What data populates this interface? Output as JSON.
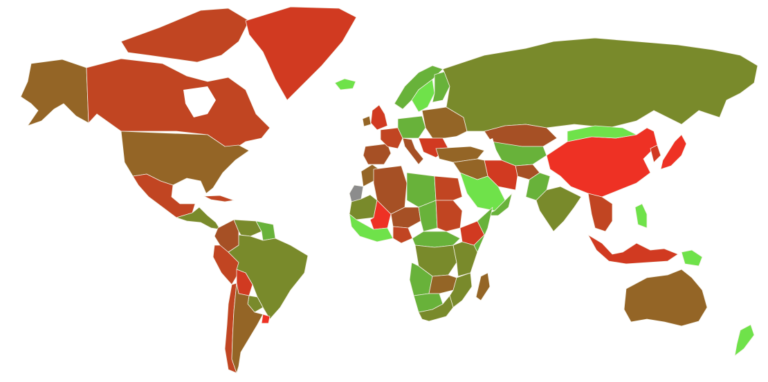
{
  "map": {
    "type": "choropleth",
    "background": "#ffffff",
    "border_color": "#f4f1e8",
    "palette": {
      "bright_red": "#ee3124",
      "red": "#d13a21",
      "red_brown": "#c14522",
      "brown": "#a65025",
      "ochre": "#946526",
      "olive": "#798a2b",
      "green": "#68b23a",
      "bright_green": "#6fe24a",
      "no_data": "#8c8c8c"
    },
    "regions": [
      {
        "name": "alaska",
        "tone": "ochre"
      },
      {
        "name": "canada",
        "tone": "red_brown"
      },
      {
        "name": "canadian-arctic-islands",
        "tone": "red_brown"
      },
      {
        "name": "greenland",
        "tone": "red"
      },
      {
        "name": "iceland",
        "tone": "bright_green"
      },
      {
        "name": "united-states",
        "tone": "ochre"
      },
      {
        "name": "mexico",
        "tone": "red_brown"
      },
      {
        "name": "central-america",
        "tone": "olive"
      },
      {
        "name": "cuba",
        "tone": "red_brown"
      },
      {
        "name": "colombia",
        "tone": "brown"
      },
      {
        "name": "venezuela",
        "tone": "olive"
      },
      {
        "name": "guianas",
        "tone": "green"
      },
      {
        "name": "peru",
        "tone": "red_brown"
      },
      {
        "name": "brazil",
        "tone": "olive"
      },
      {
        "name": "bolivia",
        "tone": "red"
      },
      {
        "name": "paraguay",
        "tone": "olive"
      },
      {
        "name": "chile",
        "tone": "red_brown"
      },
      {
        "name": "argentina",
        "tone": "ochre"
      },
      {
        "name": "uruguay",
        "tone": "bright_red"
      },
      {
        "name": "united-kingdom",
        "tone": "red"
      },
      {
        "name": "ireland",
        "tone": "ochre"
      },
      {
        "name": "norway",
        "tone": "green"
      },
      {
        "name": "sweden",
        "tone": "bright_green"
      },
      {
        "name": "finland",
        "tone": "green"
      },
      {
        "name": "iberia",
        "tone": "brown"
      },
      {
        "name": "france",
        "tone": "red_brown"
      },
      {
        "name": "central-europe",
        "tone": "green"
      },
      {
        "name": "eastern-europe",
        "tone": "ochre"
      },
      {
        "name": "balkans",
        "tone": "red"
      },
      {
        "name": "italy",
        "tone": "brown"
      },
      {
        "name": "russia",
        "tone": "olive"
      },
      {
        "name": "kazakhstan",
        "tone": "brown"
      },
      {
        "name": "turkey",
        "tone": "ochre"
      },
      {
        "name": "central-asia",
        "tone": "green"
      },
      {
        "name": "afghanistan",
        "tone": "brown"
      },
      {
        "name": "iran",
        "tone": "red"
      },
      {
        "name": "iraq-syria",
        "tone": "ochre"
      },
      {
        "name": "saudi-arabia",
        "tone": "bright_green"
      },
      {
        "name": "yemen-oman",
        "tone": "green"
      },
      {
        "name": "pakistan",
        "tone": "green"
      },
      {
        "name": "india",
        "tone": "olive"
      },
      {
        "name": "china",
        "tone": "bright_red"
      },
      {
        "name": "mongolia",
        "tone": "bright_green"
      },
      {
        "name": "japan",
        "tone": "bright_red"
      },
      {
        "name": "korea",
        "tone": "red"
      },
      {
        "name": "mainland-southeast-asia",
        "tone": "red_brown"
      },
      {
        "name": "philippines",
        "tone": "bright_green"
      },
      {
        "name": "indonesia",
        "tone": "red"
      },
      {
        "name": "papua-new-guinea",
        "tone": "bright_green"
      },
      {
        "name": "australia",
        "tone": "ochre"
      },
      {
        "name": "new-zealand",
        "tone": "bright_green"
      },
      {
        "name": "morocco",
        "tone": "ochre"
      },
      {
        "name": "western-sahara",
        "tone": "no_data"
      },
      {
        "name": "algeria",
        "tone": "brown"
      },
      {
        "name": "libya",
        "tone": "green"
      },
      {
        "name": "egypt",
        "tone": "red_brown"
      },
      {
        "name": "mauritania",
        "tone": "olive"
      },
      {
        "name": "mali",
        "tone": "bright_red"
      },
      {
        "name": "niger",
        "tone": "brown"
      },
      {
        "name": "chad",
        "tone": "green"
      },
      {
        "name": "sudan",
        "tone": "red_brown"
      },
      {
        "name": "west-africa-coast",
        "tone": "bright_green"
      },
      {
        "name": "nigeria",
        "tone": "red_brown"
      },
      {
        "name": "ethiopia",
        "tone": "red"
      },
      {
        "name": "somalia",
        "tone": "green"
      },
      {
        "name": "central-africa",
        "tone": "green"
      },
      {
        "name": "dr-congo",
        "tone": "olive"
      },
      {
        "name": "east-africa",
        "tone": "olive"
      },
      {
        "name": "angola",
        "tone": "green"
      },
      {
        "name": "zambia",
        "tone": "ochre"
      },
      {
        "name": "mozambique",
        "tone": "olive"
      },
      {
        "name": "namibia-botswana",
        "tone": "green"
      },
      {
        "name": "south-africa",
        "tone": "olive"
      },
      {
        "name": "madagascar",
        "tone": "ochre"
      }
    ]
  }
}
